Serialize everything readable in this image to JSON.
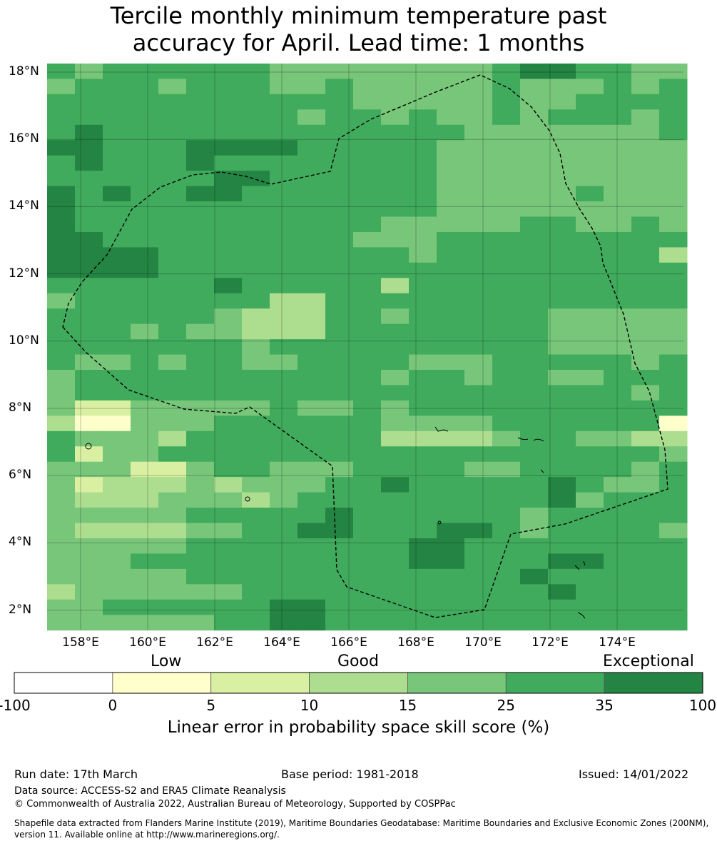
{
  "title": {
    "line1": "Tercile monthly minimum temperature past",
    "line2": "accuracy for April. Lead time: 1 months"
  },
  "map": {
    "lon_range": [
      157,
      176
    ],
    "lat_range": [
      1.4,
      18.3
    ],
    "lon_ticks": [
      "158°E",
      "160°E",
      "162°E",
      "164°E",
      "166°E",
      "168°E",
      "170°E",
      "172°E",
      "174°E"
    ],
    "lat_ticks": [
      "18°N",
      "16°N",
      "14°N",
      "12°N",
      "10°N",
      "8°N",
      "6°N",
      "4°N",
      "2°N"
    ],
    "grid": true
  },
  "colorbar": {
    "categories": [
      "Low",
      "Good",
      "Exceptional"
    ],
    "ticks": [
      "-100",
      "0",
      "5",
      "10",
      "15",
      "25",
      "35",
      "100"
    ],
    "colors": [
      "#ffffff",
      "#ffffcc",
      "#d9f0a3",
      "#addd8e",
      "#78c679",
      "#41ab5d",
      "#238443"
    ],
    "xlabel": "Linear error in probability space skill score (%)"
  },
  "footer": {
    "run_date": "Run date: 17th March",
    "base_period": "Base period: 1981-2018",
    "issued": "Issued: 14/01/2022",
    "data_source": "Data source: ACCESS-S2 and ERA5 Climate Reanalysis",
    "copyright": "© Commonwealth of Australia 2022, Australian Bureau of Meteorology, Supported by COSPPac",
    "shapefile_line1": "Shapefile data extracted from Flanders Marine Institute (2019), Maritime Boundaries Geodatabase: Maritime Boundaries and Exclusive Economic Zones (200NM),",
    "shapefile_line2": "version 11. Available online at http://www.marineregions.org/."
  },
  "chart_data": {
    "type": "heatmap",
    "title": "Tercile monthly minimum temperature past accuracy for April. Lead time: 1 months",
    "colorbar_label": "Linear error in probability space skill score (%)",
    "bins": [
      -100,
      0,
      5,
      10,
      15,
      25,
      35,
      100
    ],
    "legend": "bottom",
    "grid_rows_legend": "each character is one cell; 1=0-5, 2=5-10, 3=10-15, 4=15-25, 5=25-35, 6=35-100 (%)",
    "rows": [
      "54555555444444445665544",
      "45554555445444445444545",
      "55555555555444445445555",
      "55555555545545445455545",
      "56555555555555544444445",
      "66555666655555444444444",
      "56555655555555444444444",
      "55555566555555444444444",
      "65655665555555444445444",
      "65555555555555444444444",
      "65555555555544444554454",
      "66555555555444555555555",
      "66665555555554555555553",
      "66665555555555555555555",
      "55555565555535555555555",
      "45555555335555555555555",
      "55555543335545555544444",
      "55545443335555555544444",
      "55555554555555555544444",
      "54454554455554445555545",
      "45555555555545545544555",
      "45555555555555555555545",
      "42244444544545555555555",
      "31144455555544445555551",
      "54443555555533334554433",
      "52445555555555555555554",
      "44422455444555544555545",
      "42333434445565555565445",
      "43334443455555555564555",
      "44444555556555555455555",
      "43333445566555665455554",
      "44444555555556655555555",
      "44455555555556655566555",
      "44444555555555555655555",
      "34444445555555555565555",
      "44555555665555555555555",
      "44444455665555555555555"
    ]
  }
}
